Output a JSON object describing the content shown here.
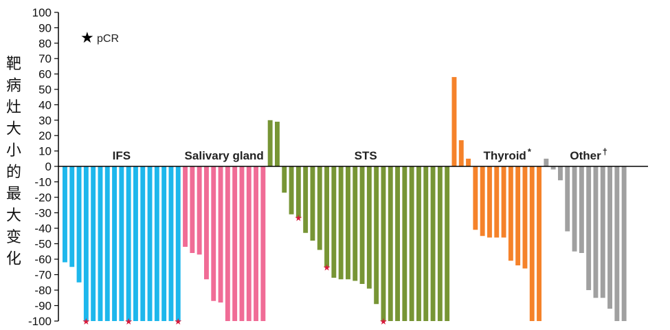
{
  "chart_data": {
    "type": "bar",
    "title": "",
    "ylabel": "靶病灶大小的最大变化",
    "ylim": [
      -100,
      100
    ],
    "yticks": [
      100,
      90,
      80,
      70,
      60,
      50,
      40,
      30,
      20,
      10,
      0,
      -10,
      -20,
      -30,
      -40,
      -50,
      -60,
      -70,
      -80,
      -90,
      -100
    ],
    "legend": {
      "marker": "★",
      "label": "pCR",
      "position": "top-left"
    },
    "colors": {
      "IFS": "#1DB7EC",
      "Salivary gland": "#F06C96",
      "STS": "#779535",
      "Thyroid": "#F5822A",
      "Other": "#A0A0A0",
      "pCR": "#D81B3C"
    },
    "groups": [
      {
        "name": "IFS",
        "label": "IFS",
        "sup": "",
        "color_key": "IFS",
        "bars": [
          {
            "value": -62,
            "pcr": false
          },
          {
            "value": -65,
            "pcr": false
          },
          {
            "value": -75,
            "pcr": false
          },
          {
            "value": -100,
            "pcr": true
          },
          {
            "value": -100,
            "pcr": false
          },
          {
            "value": -100,
            "pcr": false
          },
          {
            "value": -100,
            "pcr": false
          },
          {
            "value": -100,
            "pcr": false
          },
          {
            "value": -100,
            "pcr": false
          },
          {
            "value": -100,
            "pcr": true
          },
          {
            "value": -100,
            "pcr": false
          },
          {
            "value": -100,
            "pcr": false
          },
          {
            "value": -100,
            "pcr": false
          },
          {
            "value": -100,
            "pcr": false
          },
          {
            "value": -100,
            "pcr": false
          },
          {
            "value": -100,
            "pcr": false
          },
          {
            "value": -100,
            "pcr": true
          }
        ]
      },
      {
        "name": "Salivary gland",
        "label": "Salivary gland",
        "sup": "",
        "color_key": "Salivary gland",
        "bars": [
          {
            "value": -52,
            "pcr": false
          },
          {
            "value": -56,
            "pcr": false
          },
          {
            "value": -57,
            "pcr": false
          },
          {
            "value": -73,
            "pcr": false
          },
          {
            "value": -87,
            "pcr": false
          },
          {
            "value": -88,
            "pcr": false
          },
          {
            "value": -100,
            "pcr": false
          },
          {
            "value": -100,
            "pcr": false
          },
          {
            "value": -100,
            "pcr": false
          },
          {
            "value": -100,
            "pcr": false
          },
          {
            "value": -100,
            "pcr": false
          },
          {
            "value": -100,
            "pcr": false
          }
        ]
      },
      {
        "name": "STS",
        "label": "STS",
        "sup": "",
        "color_key": "STS",
        "bars": [
          {
            "value": 30,
            "pcr": false
          },
          {
            "value": 29,
            "pcr": false
          },
          {
            "value": -17,
            "pcr": false
          },
          {
            "value": -31,
            "pcr": false
          },
          {
            "value": -33,
            "pcr": true
          },
          {
            "value": -43,
            "pcr": false
          },
          {
            "value": -48,
            "pcr": false
          },
          {
            "value": -54,
            "pcr": false
          },
          {
            "value": -65,
            "pcr": true
          },
          {
            "value": -72,
            "pcr": false
          },
          {
            "value": -73,
            "pcr": false
          },
          {
            "value": -73,
            "pcr": false
          },
          {
            "value": -74,
            "pcr": false
          },
          {
            "value": -76,
            "pcr": false
          },
          {
            "value": -79,
            "pcr": false
          },
          {
            "value": -89,
            "pcr": false
          },
          {
            "value": -100,
            "pcr": true
          },
          {
            "value": -100,
            "pcr": false
          },
          {
            "value": -100,
            "pcr": false
          },
          {
            "value": -100,
            "pcr": false
          },
          {
            "value": -100,
            "pcr": false
          },
          {
            "value": -100,
            "pcr": false
          },
          {
            "value": -100,
            "pcr": false
          },
          {
            "value": -100,
            "pcr": false
          },
          {
            "value": -100,
            "pcr": false
          },
          {
            "value": -100,
            "pcr": false
          }
        ]
      },
      {
        "name": "Thyroid",
        "label": "Thyroid",
        "sup": "*",
        "color_key": "Thyroid",
        "bars": [
          {
            "value": 58,
            "pcr": false
          },
          {
            "value": 17,
            "pcr": false
          },
          {
            "value": 5,
            "pcr": false
          },
          {
            "value": -41,
            "pcr": false
          },
          {
            "value": -45,
            "pcr": false
          },
          {
            "value": -46,
            "pcr": false
          },
          {
            "value": -46,
            "pcr": false
          },
          {
            "value": -46,
            "pcr": false
          },
          {
            "value": -61,
            "pcr": false
          },
          {
            "value": -64,
            "pcr": false
          },
          {
            "value": -66,
            "pcr": false
          },
          {
            "value": -100,
            "pcr": false
          },
          {
            "value": -100,
            "pcr": false
          }
        ]
      },
      {
        "name": "Other",
        "label": "Other",
        "sup": "†",
        "color_key": "Other",
        "bars": [
          {
            "value": 5,
            "pcr": false
          },
          {
            "value": -2,
            "pcr": false
          },
          {
            "value": -9,
            "pcr": false
          },
          {
            "value": -42,
            "pcr": false
          },
          {
            "value": -55,
            "pcr": false
          },
          {
            "value": -56,
            "pcr": false
          },
          {
            "value": -80,
            "pcr": false
          },
          {
            "value": -85,
            "pcr": false
          },
          {
            "value": -85,
            "pcr": false
          },
          {
            "value": -92,
            "pcr": false
          },
          {
            "value": -100,
            "pcr": false
          },
          {
            "value": -100,
            "pcr": false
          }
        ]
      }
    ]
  }
}
